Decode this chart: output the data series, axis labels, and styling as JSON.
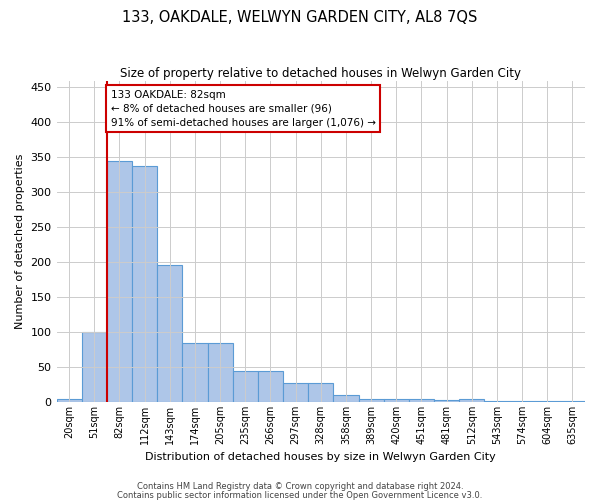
{
  "title": "133, OAKDALE, WELWYN GARDEN CITY, AL8 7QS",
  "subtitle": "Size of property relative to detached houses in Welwyn Garden City",
  "xlabel": "Distribution of detached houses by size in Welwyn Garden City",
  "ylabel": "Number of detached properties",
  "footnote1": "Contains HM Land Registry data © Crown copyright and database right 2024.",
  "footnote2": "Contains public sector information licensed under the Open Government Licence v3.0.",
  "annotation_line1": "133 OAKDALE: 82sqm",
  "annotation_line2": "← 8% of detached houses are smaller (96)",
  "annotation_line3": "91% of semi-detached houses are larger (1,076) →",
  "bar_color": "#aec6e8",
  "bar_edge_color": "#5b9bd5",
  "vline_color": "#cc0000",
  "vline_bar_index": 2,
  "categories": [
    "20sqm",
    "51sqm",
    "82sqm",
    "112sqm",
    "143sqm",
    "174sqm",
    "205sqm",
    "235sqm",
    "266sqm",
    "297sqm",
    "328sqm",
    "358sqm",
    "389sqm",
    "420sqm",
    "451sqm",
    "481sqm",
    "512sqm",
    "543sqm",
    "574sqm",
    "604sqm",
    "635sqm"
  ],
  "values": [
    5,
    100,
    345,
    338,
    196,
    85,
    85,
    44,
    44,
    27,
    27,
    10,
    5,
    5,
    5,
    3,
    5,
    2,
    2,
    2,
    2
  ],
  "ylim": [
    0,
    460
  ],
  "yticks": [
    0,
    50,
    100,
    150,
    200,
    250,
    300,
    350,
    400,
    450
  ],
  "background_color": "#ffffff",
  "grid_color": "#cccccc"
}
